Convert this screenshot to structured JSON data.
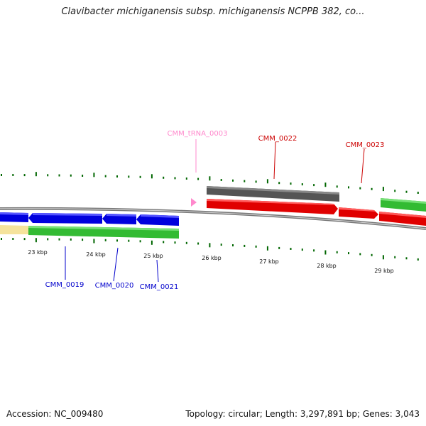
{
  "title": "Clavibacter michiganensis subsp. michiganensis NCPPB 382, co...",
  "footer": {
    "accession": "Accession: NC_009480",
    "summary": "Topology: circular; Length: 3,297,891 bp; Genes: 3,043"
  },
  "scale_labels": [
    "23 kbp",
    "24 kbp",
    "25 kbp",
    "26 kbp",
    "27 kbp",
    "28 kbp",
    "29 kbp"
  ],
  "genes": {
    "trna": "CMM_tRNA_0003",
    "cmm_0022": "CMM_0022",
    "cmm_0023": "CMM_0023",
    "cmm_0019": "CMM_0019",
    "cmm_0020": "CMM_0020",
    "cmm_0021": "CMM_0021"
  },
  "colors": {
    "forward_cds": "#ff0000",
    "reverse_cds": "#0000ff",
    "trna": "#ff88cc",
    "gc_skew": "#33cc33",
    "gc_content": "#f5e39c",
    "pseudo": "#666666",
    "ticks": "#006600",
    "backbone": "#888888"
  }
}
